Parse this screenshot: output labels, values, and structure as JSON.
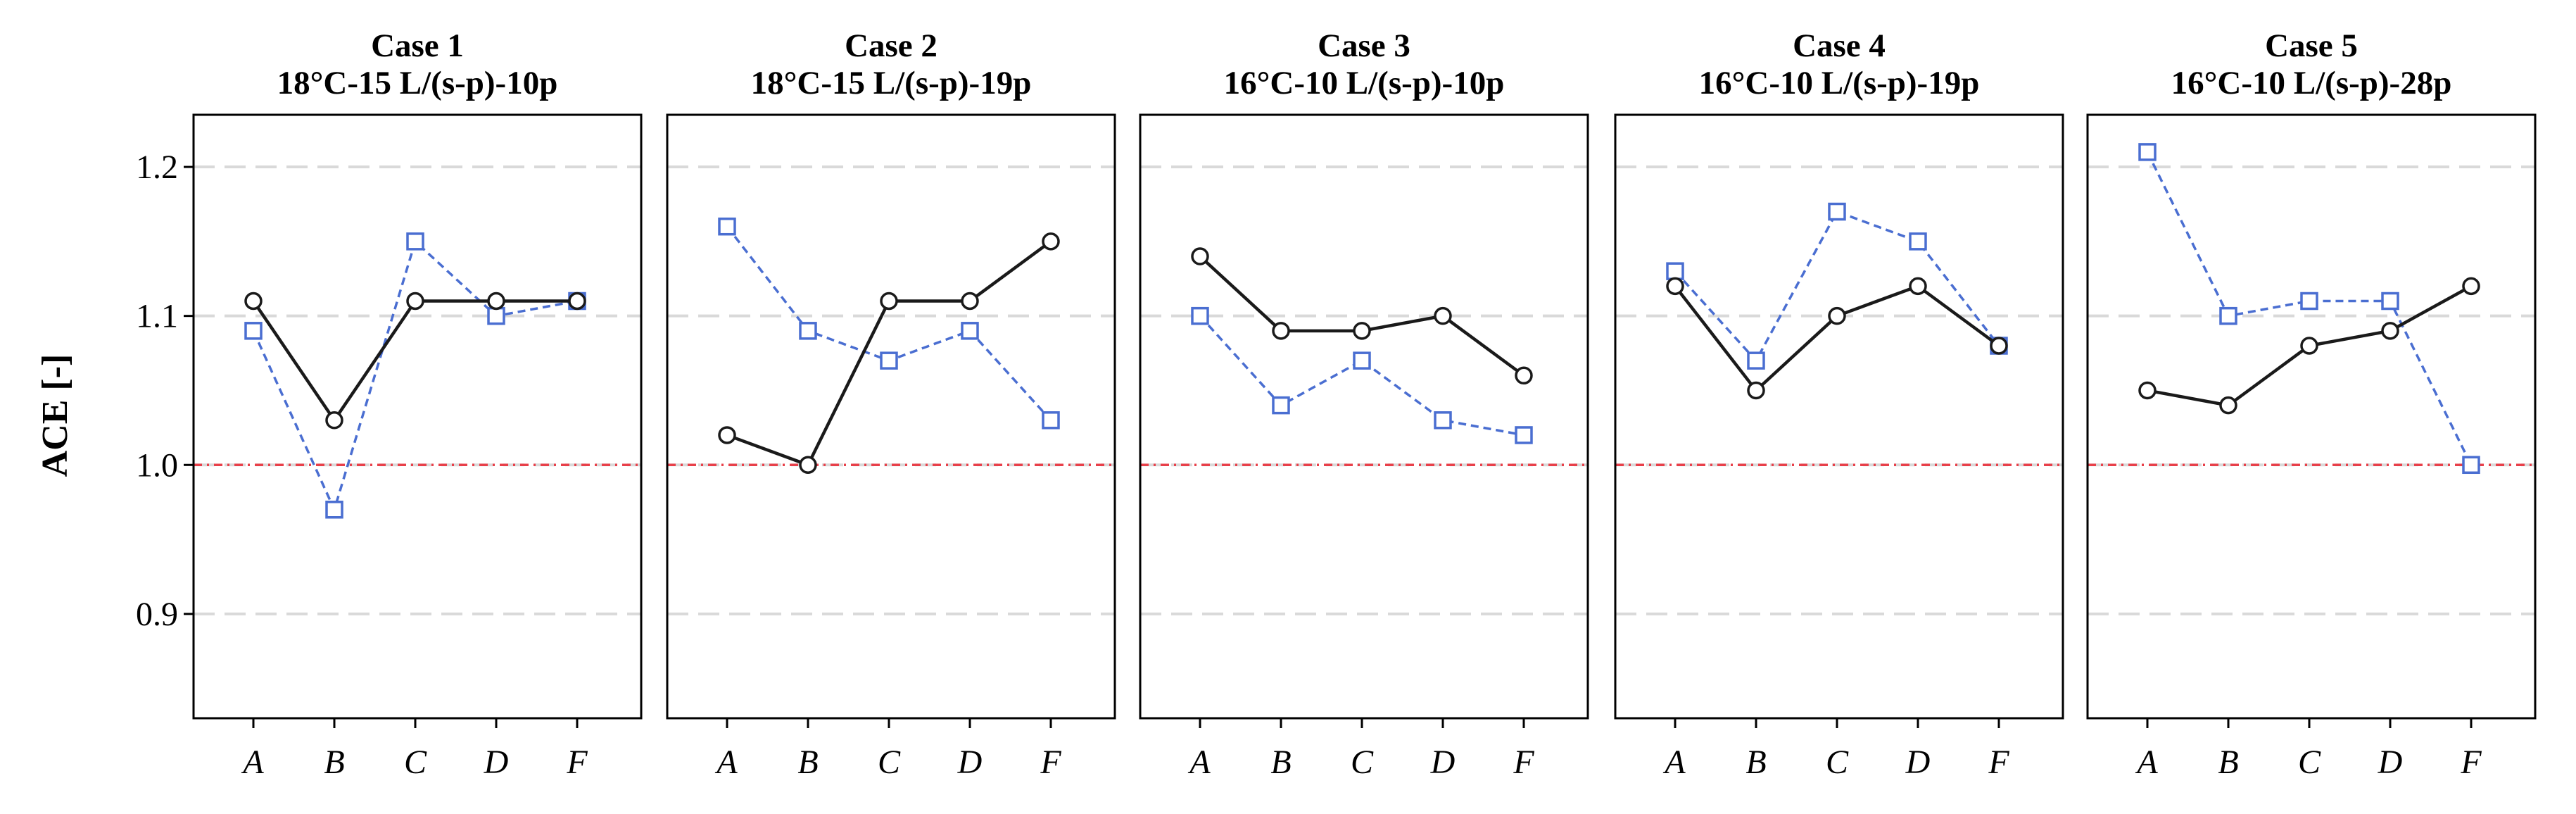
{
  "chart_data": {
    "type": "line",
    "ylabel": "ACE [-]",
    "ylim": [
      0.83,
      1.235
    ],
    "yticks": [
      {
        "value": 0.9,
        "label": "0.9"
      },
      {
        "value": 1.0,
        "label": "1.0"
      },
      {
        "value": 1.1,
        "label": "1.1"
      },
      {
        "value": 1.2,
        "label": "1.2"
      }
    ],
    "reference_line": {
      "value": 1.0,
      "color": "#e8404a",
      "style": "dash-dot"
    },
    "grid": {
      "color": "#d9d9d9",
      "style": "dashed"
    },
    "categories": [
      "A",
      "B",
      "C",
      "D",
      "F"
    ],
    "series_styles": [
      {
        "color": "#1a1a1a",
        "marker": "circle",
        "dash": "solid"
      },
      {
        "color": "#4a6ed1",
        "marker": "square",
        "dash": "dashed"
      }
    ],
    "panels": [
      {
        "title_line1": "Case 1",
        "title_line2": "18°C-15 L/(s-p)-10p",
        "series": [
          {
            "values": [
              1.11,
              1.03,
              1.11,
              1.11,
              1.11
            ]
          },
          {
            "values": [
              1.09,
              0.97,
              1.15,
              1.1,
              1.11
            ]
          }
        ]
      },
      {
        "title_line1": "Case 2",
        "title_line2": "18°C-15 L/(s-p)-19p",
        "series": [
          {
            "values": [
              1.02,
              1.0,
              1.11,
              1.11,
              1.15
            ]
          },
          {
            "values": [
              1.16,
              1.09,
              1.07,
              1.09,
              1.03
            ]
          }
        ]
      },
      {
        "title_line1": "Case 3",
        "title_line2": "16°C-10 L/(s-p)-10p",
        "series": [
          {
            "values": [
              1.14,
              1.09,
              1.09,
              1.1,
              1.06
            ]
          },
          {
            "values": [
              1.1,
              1.04,
              1.07,
              1.03,
              1.02
            ]
          }
        ]
      },
      {
        "title_line1": "Case 4",
        "title_line2": "16°C-10 L/(s-p)-19p",
        "series": [
          {
            "values": [
              1.12,
              1.05,
              1.1,
              1.12,
              1.08
            ]
          },
          {
            "values": [
              1.13,
              1.07,
              1.17,
              1.15,
              1.08
            ]
          }
        ]
      },
      {
        "title_line1": "Case 5",
        "title_line2": "16°C-10 L/(s-p)-28p",
        "series": [
          {
            "values": [
              1.05,
              1.04,
              1.08,
              1.09,
              1.12
            ]
          },
          {
            "values": [
              1.21,
              1.1,
              1.11,
              1.11,
              1.0
            ]
          }
        ]
      }
    ]
  }
}
